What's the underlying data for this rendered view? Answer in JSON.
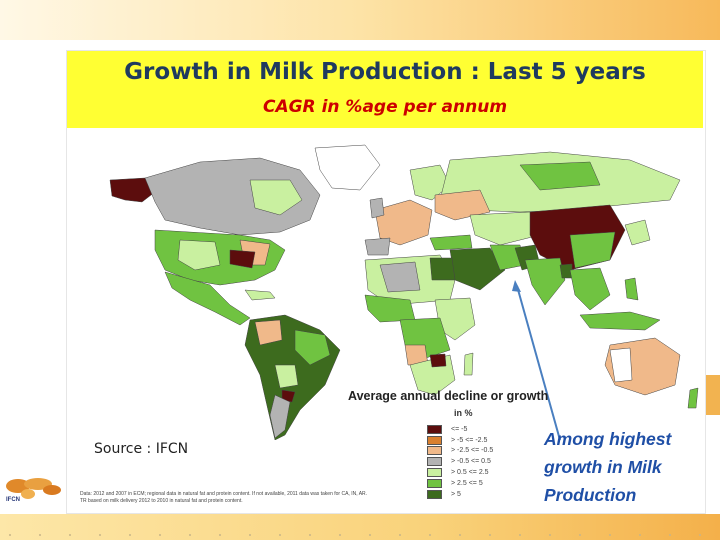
{
  "title": "Growth in Milk Production : Last 5 years",
  "subtitle": "CAGR in %age per annum",
  "legend": {
    "title": "Average annual decline or growth",
    "unit": "in %",
    "items": [
      {
        "label": "<= -5",
        "color": "#5c0d0d"
      },
      {
        "label": "> -5 <= -2.5",
        "color": "#d9802f"
      },
      {
        "label": "> -2.5 <= -0.5",
        "color": "#f0b98a"
      },
      {
        "label": "> -0.5 <= 0.5",
        "color": "#b3b3b3"
      },
      {
        "label": "> 0.5 <= 2.5",
        "color": "#c9f0a0"
      },
      {
        "label": "> 2.5 <= 5",
        "color": "#70c341"
      },
      {
        "label": "> 5",
        "color": "#3d6b1e"
      }
    ]
  },
  "source": "Source : IFCN",
  "note": {
    "line1": "Data: 2012 and 2007 in ECM; regional data in natural fat and protein content. If not available, 2011 data was taken for CA, IN, AR.",
    "line2": "TR based on milk delivery 2012 to 2010 in natural fat and protein content."
  },
  "callout": {
    "line1": "Among highest",
    "line2": "growth in Milk",
    "line3": "Production"
  },
  "logo": {
    "text": "IFCN"
  },
  "colors": {
    "title_bg": "#ffff33",
    "title_text": "#1f3a5f",
    "subtitle_text": "#cc0000",
    "callout": "#1f4fa6",
    "arrow": "#4a7fc0"
  }
}
